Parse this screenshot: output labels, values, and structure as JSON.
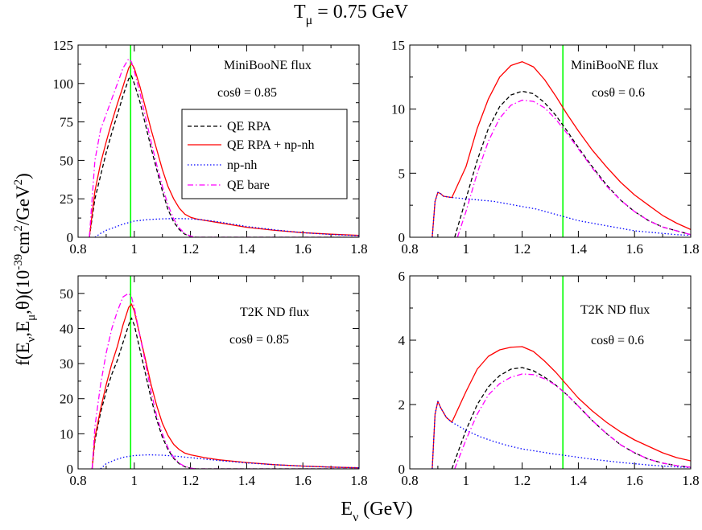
{
  "figure": {
    "title_main": "T",
    "title_sub": "μ",
    "title_rest": " = 0.75 GeV",
    "ylabel_parts": [
      "f(E",
      "ν",
      ",E",
      "μ",
      ",θ)(10",
      "-39",
      "cm",
      "2",
      "/GeV",
      "2",
      ")"
    ],
    "xlabel_main": "E",
    "xlabel_sub": "ν",
    "xlabel_rest": " (GeV)"
  },
  "colors": {
    "QE RPA": "#000000",
    "QE RPA + np-nh": "#ff0000",
    "np-nh": "#0000ff",
    "QE bare": "#ff00ff",
    "marker": "#00ff00"
  },
  "legend": {
    "placement": "inside top-right of top-left panel",
    "entries": [
      "QE RPA",
      "QE RPA + np-nh",
      "np-nh",
      "QE bare"
    ]
  },
  "chart_data": [
    {
      "type": "line",
      "flux_label": "MiniBooNE flux",
      "cos_label": "cosθ = 0.85",
      "xlim": [
        0.8,
        1.8
      ],
      "ylim": [
        0,
        125
      ],
      "xticks": [
        0.8,
        1.0,
        1.2,
        1.4,
        1.6,
        1.8
      ],
      "xtick_labels": [
        "0.8",
        "1",
        "1.2",
        "1.4",
        "1.6",
        "1.8"
      ],
      "yticks": [
        0,
        25,
        50,
        75,
        100,
        125
      ],
      "ytick_labels": [
        "0",
        "25",
        "50",
        "75",
        "100",
        "125"
      ],
      "vline_x": 0.987,
      "series": [
        {
          "name": "QE RPA",
          "x": [
            0.84,
            0.86,
            0.88,
            0.9,
            0.92,
            0.94,
            0.96,
            0.98,
            0.99,
            1.0,
            1.02,
            1.04,
            1.06,
            1.08,
            1.1,
            1.12,
            1.14,
            1.16,
            1.18,
            1.2,
            1.22,
            1.25,
            1.8
          ],
          "y": [
            0,
            25,
            40,
            55,
            68,
            80,
            92,
            103,
            105,
            100,
            88,
            73,
            58,
            44,
            30,
            18,
            10,
            5,
            2,
            0.5,
            0,
            0,
            0
          ]
        },
        {
          "name": "QE RPA + np-nh",
          "x": [
            0.84,
            0.86,
            0.88,
            0.9,
            0.92,
            0.94,
            0.96,
            0.98,
            0.99,
            1.0,
            1.02,
            1.04,
            1.06,
            1.08,
            1.1,
            1.12,
            1.14,
            1.16,
            1.18,
            1.2,
            1.22,
            1.25,
            1.3,
            1.4,
            1.5,
            1.6,
            1.7,
            1.8
          ],
          "y": [
            0,
            30,
            48,
            62,
            75,
            87,
            98,
            110,
            113,
            110,
            98,
            84,
            70,
            57,
            44,
            33,
            25,
            19,
            15,
            13,
            12,
            11,
            9.5,
            6.5,
            4.5,
            3,
            2,
            1.2
          ]
        },
        {
          "name": "np-nh",
          "x": [
            0.86,
            0.88,
            0.9,
            0.93,
            0.96,
            1.0,
            1.05,
            1.1,
            1.15,
            1.2,
            1.25,
            1.3,
            1.4,
            1.5,
            1.6,
            1.7,
            1.8
          ],
          "y": [
            0,
            2.5,
            4.5,
            6.5,
            8.5,
            10.5,
            11.5,
            12,
            12.2,
            12,
            11.2,
            10,
            7,
            4.8,
            3,
            1.8,
            1
          ]
        },
        {
          "name": "QE bare",
          "x": [
            0.84,
            0.86,
            0.88,
            0.9,
            0.92,
            0.94,
            0.96,
            0.98,
            0.99,
            1.0,
            1.02,
            1.04,
            1.06,
            1.08,
            1.1,
            1.12,
            1.14,
            1.16,
            1.18,
            1.2,
            1.22,
            1.25,
            1.8
          ],
          "y": [
            0,
            50,
            70,
            80,
            90,
            100,
            110,
            116,
            114,
            108,
            94,
            78,
            62,
            47,
            33,
            21,
            12,
            6,
            2.5,
            0.8,
            0,
            0,
            0
          ]
        }
      ]
    },
    {
      "type": "line",
      "flux_label": "MiniBooNE flux",
      "cos_label": "cosθ = 0.6",
      "xlim": [
        0.8,
        1.8
      ],
      "ylim": [
        0,
        15
      ],
      "xticks": [
        0.8,
        1.0,
        1.2,
        1.4,
        1.6,
        1.8
      ],
      "xtick_labels": [
        "0.8",
        "1",
        "1.2",
        "1.4",
        "1.6",
        "1.8"
      ],
      "yticks": [
        0,
        5,
        10,
        15
      ],
      "ytick_labels": [
        "0",
        "5",
        "10",
        "15"
      ],
      "vline_x": 1.345,
      "series": [
        {
          "name": "QE RPA",
          "x": [
            0.96,
            1.0,
            1.04,
            1.08,
            1.12,
            1.16,
            1.2,
            1.24,
            1.28,
            1.32,
            1.36,
            1.4,
            1.45,
            1.5,
            1.55,
            1.6,
            1.65,
            1.7,
            1.75,
            1.8
          ],
          "y": [
            0,
            3,
            6,
            8.5,
            10.2,
            11.1,
            11.4,
            11.2,
            10.5,
            9.5,
            8.3,
            7,
            5.5,
            4.1,
            2.9,
            2,
            1.3,
            0.8,
            0.5,
            0.2
          ]
        },
        {
          "name": "QE RPA + np-nh",
          "x": [
            0.88,
            0.89,
            0.9,
            0.91,
            0.92,
            0.95,
            1.0,
            1.04,
            1.08,
            1.12,
            1.16,
            1.2,
            1.24,
            1.28,
            1.32,
            1.36,
            1.4,
            1.45,
            1.5,
            1.55,
            1.6,
            1.65,
            1.7,
            1.75,
            1.8
          ],
          "y": [
            0,
            2.8,
            3.5,
            3.4,
            3.2,
            3.1,
            5.5,
            8.5,
            10.8,
            12.5,
            13.4,
            13.7,
            13.3,
            12.3,
            11,
            9.6,
            8.3,
            6.8,
            5.5,
            4.3,
            3.3,
            2.5,
            1.7,
            1.1,
            0.6
          ]
        },
        {
          "name": "np-nh",
          "x": [
            0.88,
            0.89,
            0.9,
            0.91,
            0.92,
            0.95,
            1.0,
            1.05,
            1.1,
            1.15,
            1.2,
            1.25,
            1.3,
            1.35,
            1.4,
            1.45,
            1.5,
            1.55,
            1.6,
            1.65,
            1.7,
            1.75,
            1.8
          ],
          "y": [
            0,
            2.8,
            3.5,
            3.4,
            3.2,
            3.1,
            3,
            2.9,
            2.8,
            2.6,
            2.4,
            2.2,
            1.9,
            1.6,
            1.3,
            1.1,
            0.9,
            0.7,
            0.5,
            0.4,
            0.3,
            0.2,
            0.15
          ]
        },
        {
          "name": "QE bare",
          "x": [
            0.97,
            1.0,
            1.04,
            1.08,
            1.12,
            1.16,
            1.2,
            1.24,
            1.28,
            1.32,
            1.36,
            1.4,
            1.45,
            1.5,
            1.55,
            1.6,
            1.65,
            1.7,
            1.75,
            1.8
          ],
          "y": [
            0,
            2,
            5,
            7.5,
            9.3,
            10.3,
            10.7,
            10.6,
            10.1,
            9.2,
            8.1,
            6.9,
            5.4,
            4,
            2.9,
            2,
            1.3,
            0.8,
            0.5,
            0.2
          ]
        }
      ]
    },
    {
      "type": "line",
      "flux_label": "T2K ND flux",
      "cos_label": "cosθ = 0.85",
      "xlim": [
        0.8,
        1.8
      ],
      "ylim": [
        0,
        55
      ],
      "xticks": [
        0.8,
        1.0,
        1.2,
        1.4,
        1.6,
        1.8
      ],
      "xtick_labels": [
        "0.8",
        "1",
        "1.2",
        "1.4",
        "1.6",
        "1.8"
      ],
      "yticks": [
        0,
        10,
        20,
        30,
        40,
        50
      ],
      "ytick_labels": [
        "0",
        "10",
        "20",
        "30",
        "40",
        "50"
      ],
      "vline_x": 0.987,
      "series": [
        {
          "name": "QE RPA",
          "x": [
            0.85,
            0.86,
            0.88,
            0.9,
            0.92,
            0.94,
            0.96,
            0.98,
            0.99,
            1.0,
            1.02,
            1.04,
            1.06,
            1.08,
            1.1,
            1.12,
            1.14,
            1.16,
            1.18,
            1.2,
            1.22,
            1.8
          ],
          "y": [
            0,
            8,
            16,
            22,
            27,
            31,
            36,
            41,
            43,
            41,
            34,
            27,
            20,
            14,
            9,
            5.5,
            3,
            1.5,
            0.6,
            0.2,
            0,
            0
          ]
        },
        {
          "name": "QE RPA + np-nh",
          "x": [
            0.85,
            0.86,
            0.88,
            0.9,
            0.92,
            0.94,
            0.96,
            0.98,
            0.99,
            1.0,
            1.02,
            1.04,
            1.06,
            1.08,
            1.1,
            1.12,
            1.14,
            1.16,
            1.18,
            1.2,
            1.25,
            1.3,
            1.4,
            1.5,
            1.6,
            1.7,
            1.8
          ],
          "y": [
            0,
            9,
            17,
            24,
            30,
            35,
            41,
            46,
            47,
            45,
            38,
            31,
            24,
            18,
            13,
            9.5,
            7,
            5.5,
            4.5,
            4,
            3.2,
            2.6,
            1.8,
            1.2,
            0.8,
            0.5,
            0.3
          ]
        },
        {
          "name": "np-nh",
          "x": [
            0.88,
            0.9,
            0.93,
            0.96,
            1.0,
            1.05,
            1.1,
            1.15,
            1.2,
            1.25,
            1.3,
            1.4,
            1.5,
            1.6,
            1.7,
            1.8
          ],
          "y": [
            0,
            1.5,
            2.5,
            3.3,
            3.8,
            4,
            3.9,
            3.6,
            3.2,
            2.8,
            2.4,
            1.7,
            1.2,
            0.8,
            0.5,
            0.3
          ]
        },
        {
          "name": "QE bare",
          "x": [
            0.85,
            0.86,
            0.88,
            0.9,
            0.92,
            0.94,
            0.96,
            0.98,
            0.99,
            1.0,
            1.02,
            1.04,
            1.06,
            1.08,
            1.1,
            1.12,
            1.14,
            1.16,
            1.18,
            1.2,
            1.22,
            1.8
          ],
          "y": [
            0,
            12,
            24,
            33,
            40,
            45,
            49,
            50,
            49,
            46,
            38,
            30,
            22,
            15,
            10,
            6,
            3.3,
            1.6,
            0.7,
            0.2,
            0,
            0
          ]
        }
      ]
    },
    {
      "type": "line",
      "flux_label": "T2K ND flux",
      "cos_label": "cosθ = 0.6",
      "xlim": [
        0.8,
        1.8
      ],
      "ylim": [
        0,
        6
      ],
      "xticks": [
        0.8,
        1.0,
        1.2,
        1.4,
        1.6,
        1.8
      ],
      "xtick_labels": [
        "0.8",
        "1",
        "1.2",
        "1.4",
        "1.6",
        "1.8"
      ],
      "yticks": [
        0,
        2,
        4,
        6
      ],
      "ytick_labels": [
        "0",
        "2",
        "4",
        "6"
      ],
      "vline_x": 1.345,
      "series": [
        {
          "name": "QE RPA",
          "x": [
            0.95,
            1.0,
            1.04,
            1.08,
            1.12,
            1.16,
            1.2,
            1.24,
            1.28,
            1.32,
            1.36,
            1.4,
            1.45,
            1.5,
            1.55,
            1.6,
            1.65,
            1.7,
            1.75,
            1.8
          ],
          "y": [
            0,
            1.2,
            2,
            2.55,
            2.9,
            3.1,
            3.15,
            3.05,
            2.85,
            2.6,
            2.3,
            1.95,
            1.5,
            1.1,
            0.75,
            0.5,
            0.3,
            0.18,
            0.1,
            0.05
          ]
        },
        {
          "name": "QE RPA + np-nh",
          "x": [
            0.88,
            0.89,
            0.9,
            0.91,
            0.93,
            0.95,
            1.0,
            1.04,
            1.08,
            1.12,
            1.16,
            1.2,
            1.24,
            1.28,
            1.32,
            1.36,
            1.4,
            1.45,
            1.5,
            1.55,
            1.6,
            1.65,
            1.7,
            1.75,
            1.8
          ],
          "y": [
            0,
            1.7,
            2.1,
            1.9,
            1.6,
            1.45,
            2.4,
            3.1,
            3.5,
            3.7,
            3.78,
            3.8,
            3.65,
            3.35,
            3,
            2.6,
            2.2,
            1.8,
            1.45,
            1.15,
            0.9,
            0.7,
            0.5,
            0.35,
            0.25
          ]
        },
        {
          "name": "np-nh",
          "x": [
            0.88,
            0.89,
            0.9,
            0.91,
            0.93,
            0.95,
            1.0,
            1.05,
            1.1,
            1.15,
            1.2,
            1.25,
            1.3,
            1.35,
            1.4,
            1.45,
            1.5,
            1.55,
            1.6,
            1.65,
            1.7,
            1.75,
            1.8
          ],
          "y": [
            0,
            1.7,
            2.1,
            1.9,
            1.6,
            1.45,
            1.2,
            1,
            0.85,
            0.72,
            0.62,
            0.55,
            0.48,
            0.42,
            0.36,
            0.3,
            0.25,
            0.2,
            0.16,
            0.12,
            0.09,
            0.06,
            0.04
          ]
        },
        {
          "name": "QE bare",
          "x": [
            0.96,
            1.0,
            1.04,
            1.08,
            1.12,
            1.16,
            1.2,
            1.24,
            1.28,
            1.32,
            1.36,
            1.4,
            1.45,
            1.5,
            1.55,
            1.6,
            1.65,
            1.7,
            1.75,
            1.8
          ],
          "y": [
            0,
            0.9,
            1.7,
            2.3,
            2.65,
            2.85,
            2.95,
            2.93,
            2.8,
            2.6,
            2.3,
            1.95,
            1.5,
            1.1,
            0.75,
            0.5,
            0.3,
            0.18,
            0.1,
            0.05
          ]
        }
      ]
    }
  ]
}
